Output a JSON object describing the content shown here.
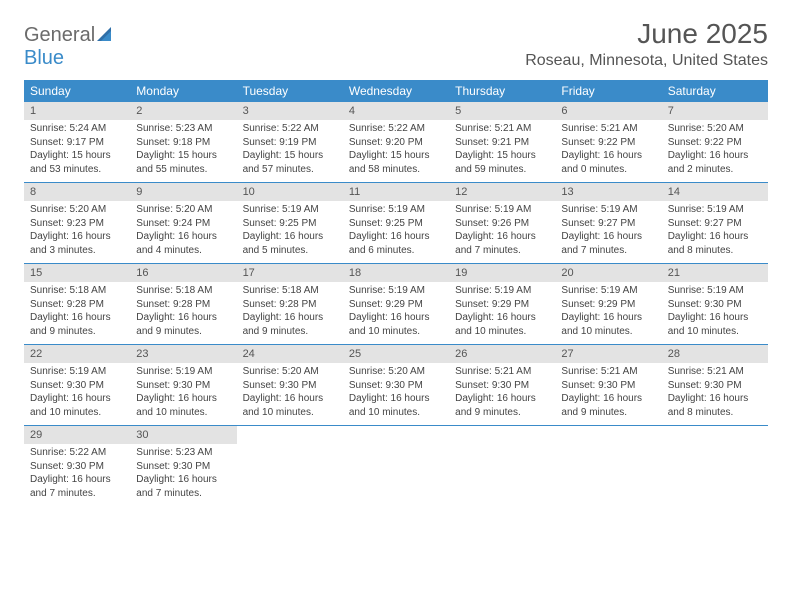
{
  "brand": {
    "part1": "General",
    "part2": "Blue"
  },
  "title": "June 2025",
  "location": "Roseau, Minnesota, United States",
  "colors": {
    "header_bg": "#3a8bc9",
    "daynum_bg": "#e3e3e3",
    "text_dark": "#555555",
    "body_text": "#444444"
  },
  "day_names": [
    "Sunday",
    "Monday",
    "Tuesday",
    "Wednesday",
    "Thursday",
    "Friday",
    "Saturday"
  ],
  "weeks": [
    [
      {
        "n": "1",
        "sr": "Sunrise: 5:24 AM",
        "ss": "Sunset: 9:17 PM",
        "dl1": "Daylight: 15 hours",
        "dl2": "and 53 minutes."
      },
      {
        "n": "2",
        "sr": "Sunrise: 5:23 AM",
        "ss": "Sunset: 9:18 PM",
        "dl1": "Daylight: 15 hours",
        "dl2": "and 55 minutes."
      },
      {
        "n": "3",
        "sr": "Sunrise: 5:22 AM",
        "ss": "Sunset: 9:19 PM",
        "dl1": "Daylight: 15 hours",
        "dl2": "and 57 minutes."
      },
      {
        "n": "4",
        "sr": "Sunrise: 5:22 AM",
        "ss": "Sunset: 9:20 PM",
        "dl1": "Daylight: 15 hours",
        "dl2": "and 58 minutes."
      },
      {
        "n": "5",
        "sr": "Sunrise: 5:21 AM",
        "ss": "Sunset: 9:21 PM",
        "dl1": "Daylight: 15 hours",
        "dl2": "and 59 minutes."
      },
      {
        "n": "6",
        "sr": "Sunrise: 5:21 AM",
        "ss": "Sunset: 9:22 PM",
        "dl1": "Daylight: 16 hours",
        "dl2": "and 0 minutes."
      },
      {
        "n": "7",
        "sr": "Sunrise: 5:20 AM",
        "ss": "Sunset: 9:22 PM",
        "dl1": "Daylight: 16 hours",
        "dl2": "and 2 minutes."
      }
    ],
    [
      {
        "n": "8",
        "sr": "Sunrise: 5:20 AM",
        "ss": "Sunset: 9:23 PM",
        "dl1": "Daylight: 16 hours",
        "dl2": "and 3 minutes."
      },
      {
        "n": "9",
        "sr": "Sunrise: 5:20 AM",
        "ss": "Sunset: 9:24 PM",
        "dl1": "Daylight: 16 hours",
        "dl2": "and 4 minutes."
      },
      {
        "n": "10",
        "sr": "Sunrise: 5:19 AM",
        "ss": "Sunset: 9:25 PM",
        "dl1": "Daylight: 16 hours",
        "dl2": "and 5 minutes."
      },
      {
        "n": "11",
        "sr": "Sunrise: 5:19 AM",
        "ss": "Sunset: 9:25 PM",
        "dl1": "Daylight: 16 hours",
        "dl2": "and 6 minutes."
      },
      {
        "n": "12",
        "sr": "Sunrise: 5:19 AM",
        "ss": "Sunset: 9:26 PM",
        "dl1": "Daylight: 16 hours",
        "dl2": "and 7 minutes."
      },
      {
        "n": "13",
        "sr": "Sunrise: 5:19 AM",
        "ss": "Sunset: 9:27 PM",
        "dl1": "Daylight: 16 hours",
        "dl2": "and 7 minutes."
      },
      {
        "n": "14",
        "sr": "Sunrise: 5:19 AM",
        "ss": "Sunset: 9:27 PM",
        "dl1": "Daylight: 16 hours",
        "dl2": "and 8 minutes."
      }
    ],
    [
      {
        "n": "15",
        "sr": "Sunrise: 5:18 AM",
        "ss": "Sunset: 9:28 PM",
        "dl1": "Daylight: 16 hours",
        "dl2": "and 9 minutes."
      },
      {
        "n": "16",
        "sr": "Sunrise: 5:18 AM",
        "ss": "Sunset: 9:28 PM",
        "dl1": "Daylight: 16 hours",
        "dl2": "and 9 minutes."
      },
      {
        "n": "17",
        "sr": "Sunrise: 5:18 AM",
        "ss": "Sunset: 9:28 PM",
        "dl1": "Daylight: 16 hours",
        "dl2": "and 9 minutes."
      },
      {
        "n": "18",
        "sr": "Sunrise: 5:19 AM",
        "ss": "Sunset: 9:29 PM",
        "dl1": "Daylight: 16 hours",
        "dl2": "and 10 minutes."
      },
      {
        "n": "19",
        "sr": "Sunrise: 5:19 AM",
        "ss": "Sunset: 9:29 PM",
        "dl1": "Daylight: 16 hours",
        "dl2": "and 10 minutes."
      },
      {
        "n": "20",
        "sr": "Sunrise: 5:19 AM",
        "ss": "Sunset: 9:29 PM",
        "dl1": "Daylight: 16 hours",
        "dl2": "and 10 minutes."
      },
      {
        "n": "21",
        "sr": "Sunrise: 5:19 AM",
        "ss": "Sunset: 9:30 PM",
        "dl1": "Daylight: 16 hours",
        "dl2": "and 10 minutes."
      }
    ],
    [
      {
        "n": "22",
        "sr": "Sunrise: 5:19 AM",
        "ss": "Sunset: 9:30 PM",
        "dl1": "Daylight: 16 hours",
        "dl2": "and 10 minutes."
      },
      {
        "n": "23",
        "sr": "Sunrise: 5:19 AM",
        "ss": "Sunset: 9:30 PM",
        "dl1": "Daylight: 16 hours",
        "dl2": "and 10 minutes."
      },
      {
        "n": "24",
        "sr": "Sunrise: 5:20 AM",
        "ss": "Sunset: 9:30 PM",
        "dl1": "Daylight: 16 hours",
        "dl2": "and 10 minutes."
      },
      {
        "n": "25",
        "sr": "Sunrise: 5:20 AM",
        "ss": "Sunset: 9:30 PM",
        "dl1": "Daylight: 16 hours",
        "dl2": "and 10 minutes."
      },
      {
        "n": "26",
        "sr": "Sunrise: 5:21 AM",
        "ss": "Sunset: 9:30 PM",
        "dl1": "Daylight: 16 hours",
        "dl2": "and 9 minutes."
      },
      {
        "n": "27",
        "sr": "Sunrise: 5:21 AM",
        "ss": "Sunset: 9:30 PM",
        "dl1": "Daylight: 16 hours",
        "dl2": "and 9 minutes."
      },
      {
        "n": "28",
        "sr": "Sunrise: 5:21 AM",
        "ss": "Sunset: 9:30 PM",
        "dl1": "Daylight: 16 hours",
        "dl2": "and 8 minutes."
      }
    ],
    [
      {
        "n": "29",
        "sr": "Sunrise: 5:22 AM",
        "ss": "Sunset: 9:30 PM",
        "dl1": "Daylight: 16 hours",
        "dl2": "and 7 minutes."
      },
      {
        "n": "30",
        "sr": "Sunrise: 5:23 AM",
        "ss": "Sunset: 9:30 PM",
        "dl1": "Daylight: 16 hours",
        "dl2": "and 7 minutes."
      },
      null,
      null,
      null,
      null,
      null
    ]
  ]
}
